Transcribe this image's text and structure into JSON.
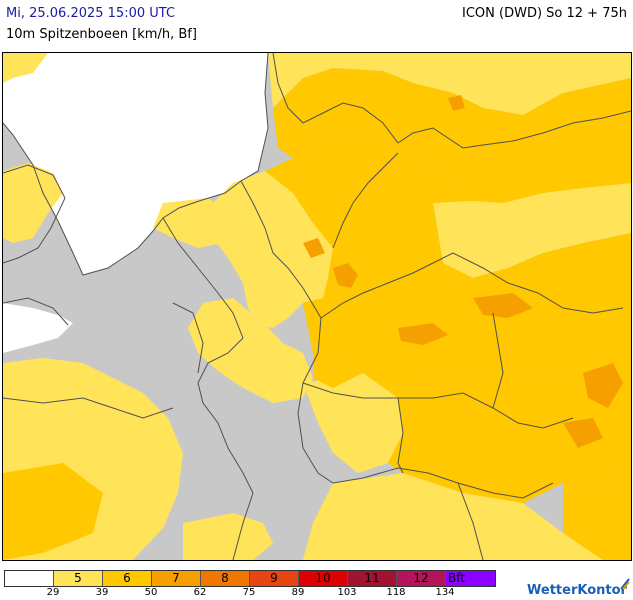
{
  "header": {
    "date_time": "Mi, 25.06.2025 15:00 UTC",
    "model_run": "ICON (DWD) So 12 + 75h",
    "parameter": "10m Spitzenboeen [km/h, Bf]"
  },
  "legend": {
    "bins": [
      {
        "label": "",
        "color": "#ffffff"
      },
      {
        "label": "5",
        "color": "#ffe45a"
      },
      {
        "label": "6",
        "color": "#ffc800"
      },
      {
        "label": "7",
        "color": "#f5a000"
      },
      {
        "label": "8",
        "color": "#f07800"
      },
      {
        "label": "9",
        "color": "#e64614"
      },
      {
        "label": "10",
        "color": "#dc0000"
      },
      {
        "label": "11",
        "color": "#a01432"
      },
      {
        "label": "12",
        "color": "#b4145a"
      },
      {
        "label": "Bft",
        "color": "#8c00ff"
      }
    ],
    "ticks": [
      "29",
      "39",
      "50",
      "62",
      "75",
      "89",
      "103",
      "118",
      "134"
    ]
  },
  "colors": {
    "below_threshold": "#c8c8c8",
    "sea_no_data": "#ffffff",
    "bft5": "#ffe45a",
    "bft6": "#ffc800",
    "bft7": "#f5a000",
    "border": "#505050"
  },
  "logo": {
    "text": "WetterKontor",
    "icon": "wetterkontor-logo-icon"
  }
}
